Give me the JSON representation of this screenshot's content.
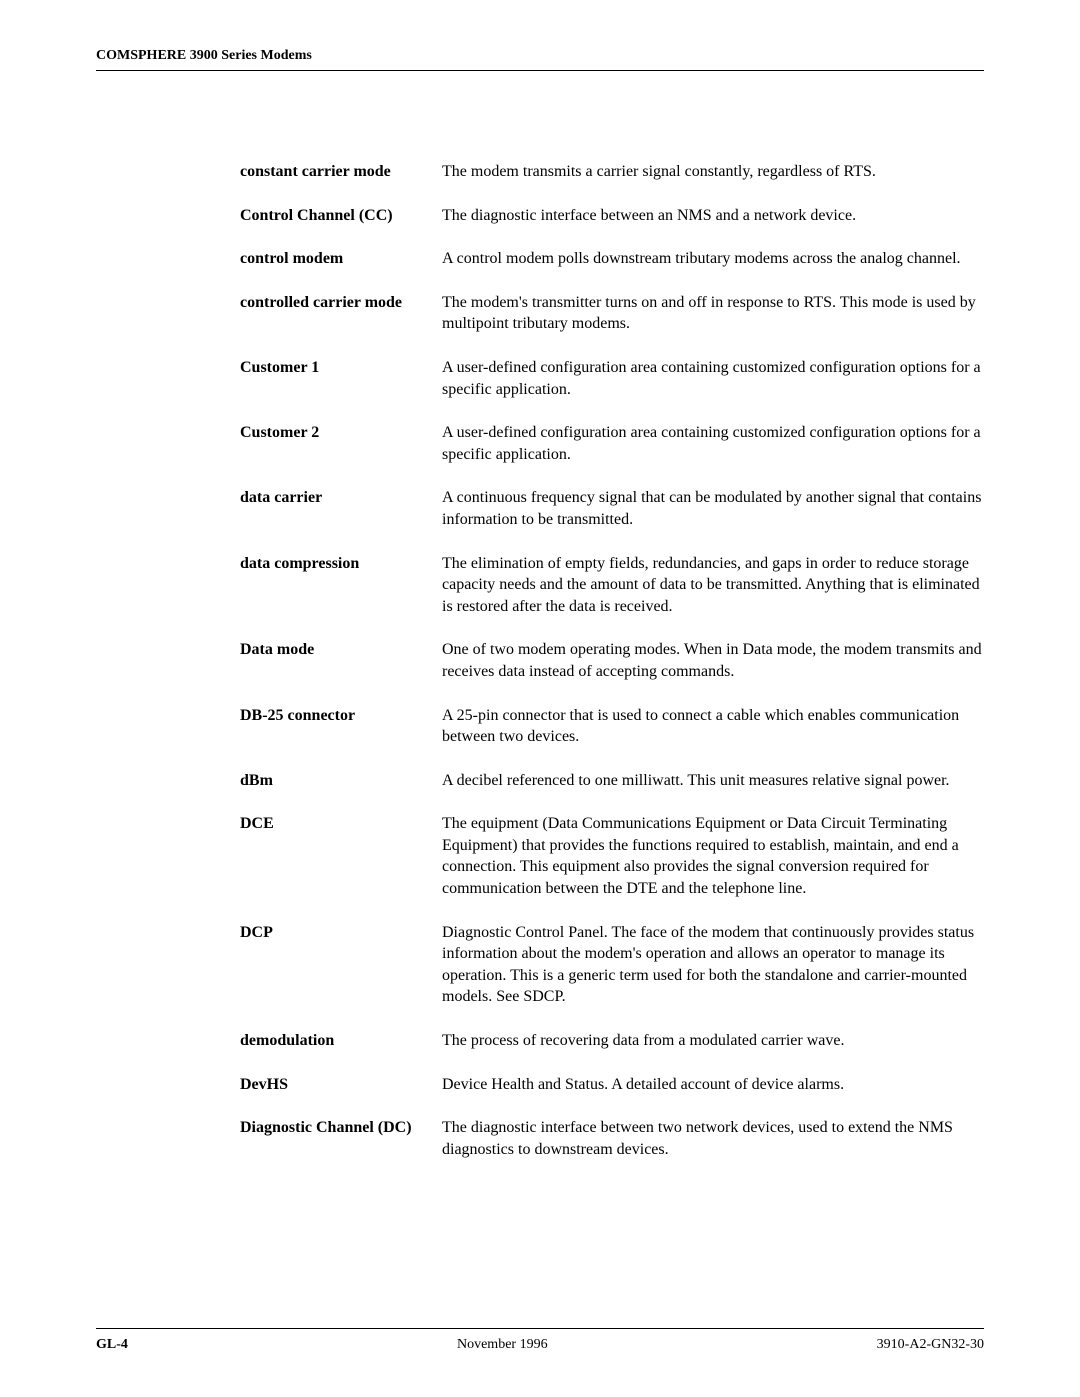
{
  "header": {
    "running_head": "COMSPHERE 3900 Series Modems"
  },
  "glossary": {
    "entries": [
      {
        "term": "constant carrier mode",
        "definition": "The modem transmits a carrier signal constantly, regardless of RTS."
      },
      {
        "term": "Control Channel (CC)",
        "definition": "The diagnostic interface between an NMS and a network device."
      },
      {
        "term": "control modem",
        "definition": "A control modem polls downstream tributary modems across the analog channel."
      },
      {
        "term": "controlled carrier mode",
        "definition": "The modem's transmitter turns on and off in response to RTS. This mode is used by multipoint tributary modems."
      },
      {
        "term": "Customer 1",
        "definition": "A user-defined configuration area containing customized configuration options for a specific application."
      },
      {
        "term": "Customer 2",
        "definition": "A user-defined configuration area containing customized configuration options for a specific application."
      },
      {
        "term": "data carrier",
        "definition": "A continuous frequency signal that can be modulated by another signal that contains information to be transmitted."
      },
      {
        "term": "data compression",
        "definition": "The elimination of empty fields, redundancies, and gaps in order to reduce storage capacity needs and the amount of data to be transmitted. Anything that is eliminated is restored after the data is received."
      },
      {
        "term": "Data mode",
        "definition": "One of two modem operating modes. When in Data mode, the modem transmits and receives data instead of accepting commands."
      },
      {
        "term": "DB-25 connector",
        "definition": "A 25-pin connector that is used to connect a cable which enables communication between two devices."
      },
      {
        "term": "dBm",
        "definition": "A decibel referenced to one milliwatt. This unit measures relative signal power."
      },
      {
        "term": "DCE",
        "definition": "The equipment (Data Communications Equipment or Data Circuit Terminating Equipment) that provides the functions required to establish, maintain, and end a connection. This equipment also provides the signal conversion required for communication between the DTE and the telephone line."
      },
      {
        "term": "DCP",
        "definition": "Diagnostic Control Panel. The face of the modem that continuously provides status information about the modem's operation and allows an operator to manage its operation. This is a generic term used for both the standalone and carrier-mounted models. See SDCP."
      },
      {
        "term": "demodulation",
        "definition": "The process of recovering data from a modulated carrier wave."
      },
      {
        "term": "DevHS",
        "definition": "Device Health and Status. A detailed account of device alarms."
      },
      {
        "term": "Diagnostic Channel (DC)",
        "definition": "The diagnostic interface between two network devices, used to extend the NMS diagnostics to downstream devices."
      }
    ]
  },
  "footer": {
    "page_number": "GL-4",
    "date": "November 1996",
    "doc_number": "3910-A2-GN32-30"
  }
}
